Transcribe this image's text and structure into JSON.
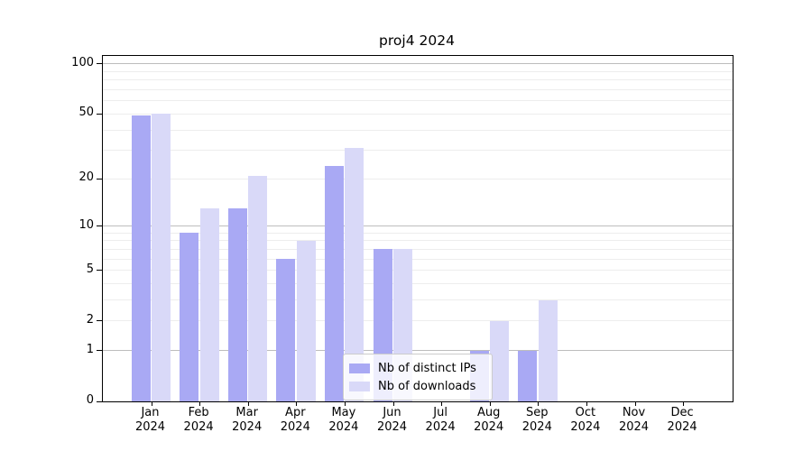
{
  "chart_data": {
    "type": "bar",
    "title": "proj4 2024",
    "categories": [
      "Jan 2024",
      "Feb 2024",
      "Mar 2024",
      "Apr 2024",
      "May 2024",
      "Jun 2024",
      "Jul 2024",
      "Aug 2024",
      "Sep 2024",
      "Oct 2024",
      "Nov 2024",
      "Dec 2024"
    ],
    "series": [
      {
        "name": "Nb of distinct IPs",
        "color": "#a9a9f4",
        "values": [
          49,
          9,
          13,
          6,
          24,
          7,
          0,
          1,
          1,
          0,
          0,
          0
        ]
      },
      {
        "name": "Nb of downloads",
        "color": "#d9d9f8",
        "values": [
          50,
          13,
          21,
          8,
          31,
          7,
          0,
          2,
          3,
          0,
          0,
          0
        ]
      }
    ],
    "xlabel": "",
    "ylabel": "",
    "yscale": "log1p",
    "ylim": [
      0,
      112
    ],
    "ytick_labels": [
      "100",
      "50",
      "20",
      "10",
      "5",
      "2",
      "1",
      "0"
    ],
    "ytick_values": [
      100,
      50,
      20,
      10,
      5,
      2,
      1,
      0
    ],
    "major_gridlines": [
      1,
      10,
      100
    ],
    "minor_gridlines": [
      2,
      3,
      4,
      5,
      6,
      7,
      8,
      9,
      20,
      30,
      40,
      50,
      60,
      70,
      80,
      90
    ],
    "grid": true,
    "legend_position": "lower center",
    "colors": {
      "series_ips": "#a9a9f4",
      "series_downloads": "#d9d9f8",
      "major_grid": "#bdbdbd",
      "minor_grid": "#ededed",
      "spine": "#000000",
      "text": "#000000",
      "legend_border": "#cccccc"
    }
  }
}
